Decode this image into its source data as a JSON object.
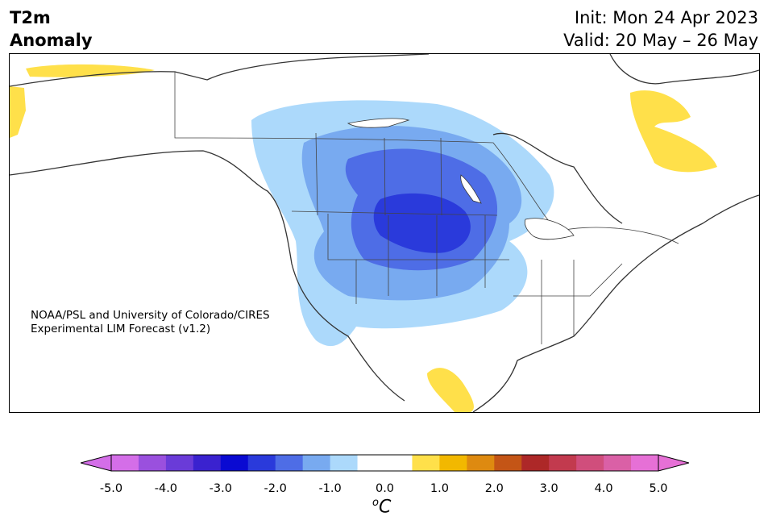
{
  "header": {
    "title_line1": "T2m",
    "title_line2": "Anomaly",
    "init": "Init: Mon 24 Apr 2023",
    "valid": "Valid: 20 May – 26 May"
  },
  "credit": {
    "line1": "NOAA/PSL and University of Colorado/CIRES",
    "line2": "Experimental LIM Forecast (v1.2)"
  },
  "colorbar": {
    "ticks": [
      "-5.0",
      "-4.0",
      "-3.0",
      "-2.0",
      "-1.0",
      "0.0",
      "1.0",
      "2.0",
      "3.0",
      "4.0",
      "5.0"
    ],
    "unit_sup": "o",
    "unit": "C",
    "colors": [
      "#d46ee8",
      "#9a50de",
      "#6a3bd8",
      "#3a22cf",
      "#0a0ad2",
      "#2a3adb",
      "#4e6de6",
      "#78aaf0",
      "#acd9fb",
      "#ffffff",
      "#ffffff",
      "#ffe04a",
      "#f2b800",
      "#de8a10",
      "#c45516",
      "#ad2828",
      "#c23a4e",
      "#d04e7c",
      "#da60a6",
      "#e670d6"
    ]
  }
}
